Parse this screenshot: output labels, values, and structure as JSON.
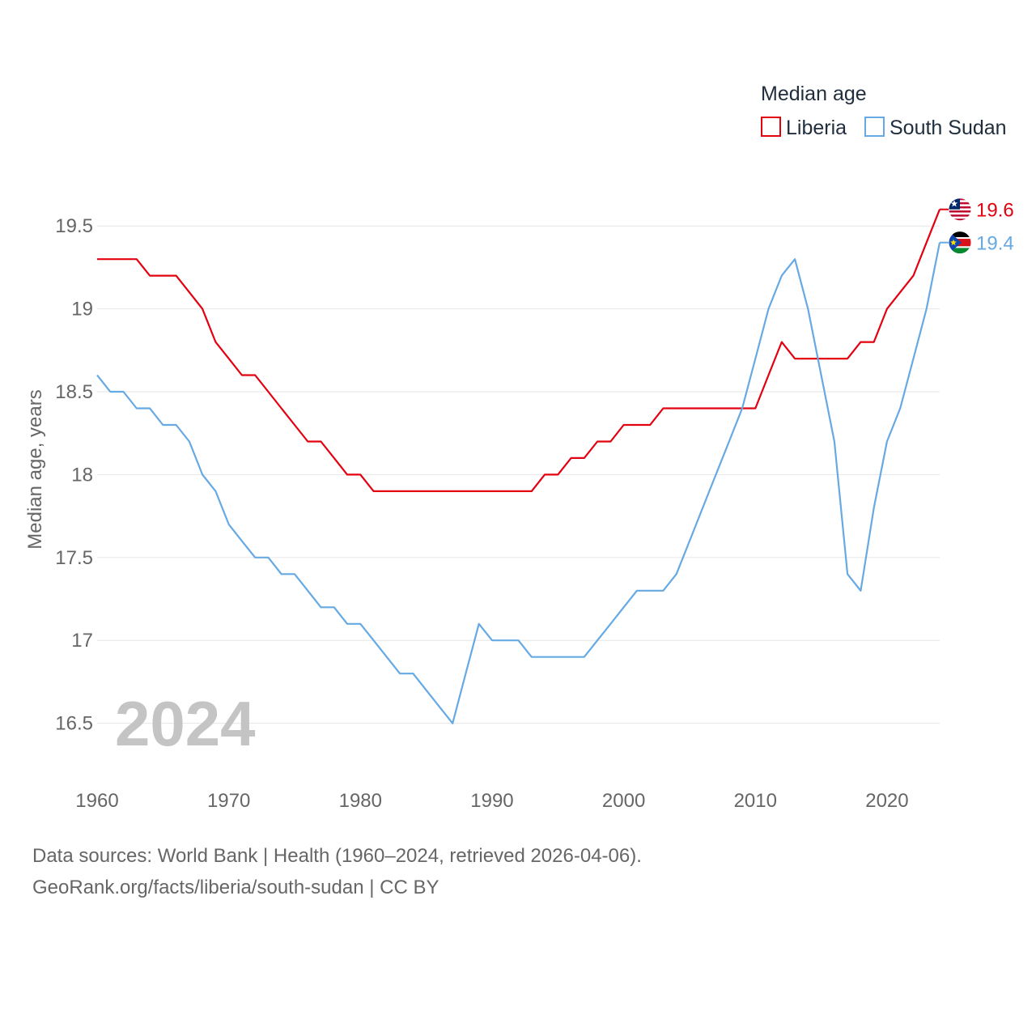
{
  "chart_data": {
    "type": "line",
    "legend_title": "Median age",
    "ylabel": "Median age, years",
    "xlabel": "",
    "x_ticks": [
      1960,
      1970,
      1980,
      1990,
      2000,
      2010,
      2020
    ],
    "y_ticks": [
      16.5,
      17,
      17.5,
      18,
      18.5,
      19,
      19.5
    ],
    "y_tick_labels": [
      "16.5",
      "17",
      "17.5",
      "18",
      "18.5",
      "19",
      "19.5"
    ],
    "xlim": [
      1960,
      2024
    ],
    "ylim": [
      16.22,
      19.75
    ],
    "current_year": "2024",
    "x": [
      1960,
      1961,
      1962,
      1963,
      1964,
      1965,
      1966,
      1967,
      1968,
      1969,
      1970,
      1971,
      1972,
      1973,
      1974,
      1975,
      1976,
      1977,
      1978,
      1979,
      1980,
      1981,
      1982,
      1983,
      1984,
      1985,
      1986,
      1987,
      1988,
      1989,
      1990,
      1991,
      1992,
      1993,
      1994,
      1995,
      1996,
      1997,
      1998,
      1999,
      2000,
      2001,
      2002,
      2003,
      2004,
      2005,
      2006,
      2007,
      2008,
      2009,
      2010,
      2011,
      2012,
      2013,
      2014,
      2015,
      2016,
      2017,
      2018,
      2019,
      2020,
      2021,
      2022,
      2023,
      2024
    ],
    "series": [
      {
        "name": "Liberia",
        "color": "#e3000f",
        "end_label": "19.6",
        "flag": "liberia-flag",
        "values": [
          19.3,
          19.3,
          19.3,
          19.3,
          19.2,
          19.2,
          19.2,
          19.1,
          19.0,
          18.8,
          18.7,
          18.6,
          18.6,
          18.5,
          18.4,
          18.3,
          18.2,
          18.2,
          18.1,
          18.0,
          18.0,
          17.9,
          17.9,
          17.9,
          17.9,
          17.9,
          17.9,
          17.9,
          17.9,
          17.9,
          17.9,
          17.9,
          17.9,
          17.9,
          18.0,
          18.0,
          18.1,
          18.1,
          18.2,
          18.2,
          18.3,
          18.3,
          18.3,
          18.4,
          18.4,
          18.4,
          18.4,
          18.4,
          18.4,
          18.4,
          18.4,
          18.6,
          18.8,
          18.7,
          18.7,
          18.7,
          18.7,
          18.7,
          18.8,
          18.8,
          19.0,
          19.1,
          19.2,
          19.4,
          19.6
        ]
      },
      {
        "name": "South Sudan",
        "color": "#66a9e3",
        "end_label": "19.4",
        "flag": "south-sudan-flag",
        "values": [
          18.6,
          18.5,
          18.5,
          18.4,
          18.4,
          18.3,
          18.3,
          18.2,
          18.0,
          17.9,
          17.7,
          17.6,
          17.5,
          17.5,
          17.4,
          17.4,
          17.3,
          17.2,
          17.2,
          17.1,
          17.1,
          17.0,
          16.9,
          16.8,
          16.8,
          16.7,
          16.6,
          16.5,
          16.8,
          17.1,
          17.0,
          17.0,
          17.0,
          16.9,
          16.9,
          16.9,
          16.9,
          16.9,
          17.0,
          17.1,
          17.2,
          17.3,
          17.3,
          17.3,
          17.4,
          17.6,
          17.8,
          18.0,
          18.2,
          18.4,
          18.7,
          19.0,
          19.2,
          19.3,
          19.0,
          18.6,
          18.2,
          17.4,
          17.3,
          17.8,
          18.2,
          18.4,
          18.7,
          19.0,
          19.4
        ]
      }
    ]
  },
  "footer": {
    "line1": "Data sources: World Bank | Health (1960–2024, retrieved 2026-04-06).",
    "line2": "GeoRank.org/facts/liberia/south-sudan | CC BY"
  }
}
